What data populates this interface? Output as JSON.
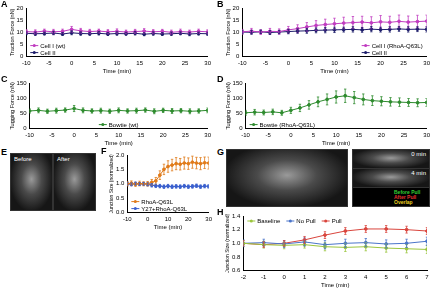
{
  "chart_data": [
    {
      "type": "line",
      "title": "A",
      "x_label": "Time (min)",
      "y_label": "Traction Force (nN)",
      "grid": false,
      "legend": "lower left",
      "x": [
        -10,
        -8,
        -6,
        -4,
        -2,
        0,
        2,
        4,
        6,
        8,
        10,
        12,
        14,
        16,
        18,
        20,
        22,
        24,
        26,
        28,
        30
      ],
      "xlim": [
        -10,
        30
      ],
      "xticks": [
        -10,
        -5,
        0,
        5,
        10,
        15,
        20,
        25,
        30
      ],
      "ylim": [
        0,
        20
      ],
      "yticks": [
        0,
        5,
        10,
        15,
        20
      ],
      "series": [
        {
          "name": "Cell I (wt)",
          "color": "#c03cc0",
          "values": [
            10.3,
            10.1,
            10.5,
            10.2,
            10.4,
            11.2,
            10.6,
            10.3,
            10.5,
            10.2,
            10.4,
            10.1,
            10.3,
            10.5,
            10.2,
            10.4,
            10.0,
            10.3,
            10.1,
            10.4,
            10.2
          ],
          "errors": [
            0.8,
            0.9,
            0.8,
            1.0,
            0.9,
            1.2,
            1.0,
            0.9,
            0.8,
            0.9,
            1.0,
            0.8,
            0.9,
            1.0,
            0.9,
            0.8,
            0.9,
            1.0,
            0.8,
            0.9,
            0.9
          ]
        },
        {
          "name": "Cell II",
          "color": "#1c1c6a",
          "values": [
            9.6,
            9.4,
            9.5,
            9.7,
            9.3,
            9.8,
            9.5,
            9.4,
            9.6,
            9.3,
            9.5,
            9.4,
            9.6,
            9.2,
            9.5,
            9.3,
            9.4,
            9.6,
            9.3,
            9.5,
            9.4
          ],
          "errors": [
            0.6,
            0.7,
            0.6,
            0.7,
            0.6,
            0.8,
            0.7,
            0.6,
            0.7,
            0.6,
            0.7,
            0.6,
            0.7,
            0.6,
            0.7,
            0.6,
            0.7,
            0.6,
            0.7,
            0.6,
            0.7
          ]
        }
      ]
    },
    {
      "type": "line",
      "title": "B",
      "x_label": "Time (min)",
      "y_label": "Traction Force (nN)",
      "grid": false,
      "legend": "lower right",
      "x": [
        -10,
        -8,
        -6,
        -4,
        -2,
        0,
        2,
        4,
        6,
        8,
        10,
        12,
        14,
        16,
        18,
        20,
        22,
        24,
        26,
        28,
        30
      ],
      "xlim": [
        -10,
        30
      ],
      "xticks": [
        -10,
        -5,
        0,
        5,
        10,
        15,
        20,
        25,
        30
      ],
      "ylim": [
        0,
        20
      ],
      "yticks": [
        0,
        5,
        10,
        15,
        20
      ],
      "series": [
        {
          "name": "Cell I (RhoA-Q63L)",
          "color": "#c03cc0",
          "values": [
            10.2,
            10.5,
            10.1,
            10.4,
            10.3,
            11.0,
            11.5,
            12.2,
            12.8,
            13.2,
            13.5,
            13.8,
            14.0,
            14.2,
            13.9,
            14.3,
            14.1,
            14.5,
            14.2,
            14.4,
            14.6
          ],
          "errors": [
            1.0,
            1.1,
            1.0,
            1.2,
            1.1,
            1.4,
            1.6,
            1.8,
            2.0,
            2.2,
            2.3,
            2.4,
            2.5,
            2.4,
            2.5,
            2.6,
            2.5,
            2.6,
            2.5,
            2.6,
            2.5
          ]
        },
        {
          "name": "Cell II",
          "color": "#1c1c6a",
          "values": [
            10.1,
            10.0,
            10.2,
            9.9,
            10.1,
            10.3,
            10.5,
            10.6,
            10.8,
            10.9,
            11.0,
            11.1,
            11.2,
            11.0,
            11.3,
            11.1,
            11.2,
            11.4,
            11.2,
            11.3,
            11.2
          ],
          "errors": [
            0.7,
            0.8,
            0.7,
            0.8,
            0.7,
            0.9,
            0.9,
            1.0,
            1.0,
            1.1,
            1.1,
            1.0,
            1.1,
            1.0,
            1.1,
            1.0,
            1.1,
            1.0,
            1.1,
            1.0,
            1.1
          ]
        }
      ]
    },
    {
      "type": "line",
      "title": "C",
      "x_label": "Time (min)",
      "y_label": "Tugging Force (nN)",
      "grid": false,
      "legend": "lower center",
      "x": [
        -10,
        -8,
        -6,
        -4,
        -2,
        0,
        2,
        4,
        6,
        8,
        10,
        12,
        14,
        16,
        18,
        20,
        22,
        24,
        26,
        28,
        30
      ],
      "xlim": [
        -10,
        30
      ],
      "xticks": [
        -10,
        -5,
        0,
        5,
        10,
        15,
        20,
        25,
        30
      ],
      "ylim": [
        0,
        150
      ],
      "yticks": [
        0,
        50,
        100,
        150
      ],
      "series": [
        {
          "name": "Bowtie (wt)",
          "color": "#2e8b2e",
          "values": [
            58,
            60,
            57,
            59,
            61,
            66,
            60,
            58,
            59,
            57,
            60,
            58,
            59,
            61,
            57,
            60,
            58,
            59,
            57,
            58,
            60
          ],
          "errors": [
            7,
            8,
            7,
            8,
            7,
            10,
            8,
            7,
            8,
            7,
            8,
            7,
            8,
            7,
            8,
            7,
            8,
            7,
            8,
            7,
            8
          ]
        }
      ]
    },
    {
      "type": "line",
      "title": "D",
      "x_label": "Time (min)",
      "y_label": "Tugging Force (nN)",
      "grid": false,
      "legend": "lower left",
      "x": [
        -10,
        -8,
        -6,
        -4,
        -2,
        0,
        2,
        4,
        6,
        8,
        10,
        12,
        14,
        16,
        18,
        20,
        22,
        24,
        26,
        28,
        30
      ],
      "xlim": [
        -10,
        30
      ],
      "xticks": [
        -10,
        -5,
        0,
        5,
        10,
        15,
        20,
        25,
        30
      ],
      "ylim": [
        0,
        150
      ],
      "yticks": [
        0,
        50,
        100,
        150
      ],
      "series": [
        {
          "name": "Bowtie (RhoA-Q63L)",
          "color": "#2e8b2e",
          "values": [
            52,
            54,
            53,
            55,
            52,
            60,
            68,
            78,
            88,
            96,
            104,
            108,
            102,
            96,
            92,
            90,
            88,
            87,
            86,
            85,
            86
          ],
          "errors": [
            8,
            9,
            8,
            9,
            8,
            10,
            12,
            14,
            16,
            18,
            20,
            22,
            20,
            18,
            16,
            15,
            14,
            14,
            13,
            13,
            13
          ]
        }
      ]
    },
    {
      "type": "line",
      "title": "F",
      "x_label": "Time (min)",
      "y_label": "Junction Size (normalized)",
      "grid": false,
      "legend": "lower left",
      "x": [
        -10,
        -8,
        -6,
        -4,
        -2,
        0,
        2,
        4,
        6,
        8,
        10,
        12,
        14,
        16,
        18,
        20,
        22,
        24,
        26,
        28,
        30
      ],
      "xlim": [
        -10,
        30
      ],
      "xticks": [
        -10,
        0,
        10,
        20,
        30
      ],
      "ylim": [
        0,
        2
      ],
      "yticks": [
        {
          "value": 0,
          "label": "0.0"
        },
        0.5,
        {
          "value": 1,
          "label": "1.0"
        },
        1.5,
        {
          "value": 2,
          "label": "2.0"
        }
      ],
      "series": [
        {
          "name": "RhoA-Q63L",
          "color": "#e07b1a",
          "values": [
            1.0,
            1.02,
            0.98,
            1.01,
            1.0,
            1.0,
            1.05,
            1.1,
            1.3,
            1.5,
            1.6,
            1.65,
            1.7,
            1.68,
            1.72,
            1.7,
            1.75,
            1.72,
            1.7,
            1.73,
            1.72
          ],
          "errors": [
            0.08,
            0.08,
            0.07,
            0.08,
            0.07,
            0.08,
            0.1,
            0.12,
            0.15,
            0.18,
            0.2,
            0.2,
            0.21,
            0.2,
            0.21,
            0.2,
            0.21,
            0.2,
            0.21,
            0.2,
            0.21
          ]
        },
        {
          "name": "Y27+RhoA-Q63L",
          "color": "#3a5fcd",
          "values": [
            1.0,
            0.98,
            1.01,
            0.99,
            1.0,
            0.98,
            0.95,
            0.93,
            0.92,
            0.9,
            0.92,
            0.9,
            0.91,
            0.9,
            0.92,
            0.9,
            0.91,
            0.93,
            0.9,
            0.92,
            0.91
          ],
          "errors": [
            0.05,
            0.05,
            0.05,
            0.05,
            0.05,
            0.05,
            0.06,
            0.06,
            0.06,
            0.06,
            0.06,
            0.06,
            0.06,
            0.06,
            0.06,
            0.06,
            0.06,
            0.06,
            0.06,
            0.06,
            0.06
          ]
        }
      ]
    },
    {
      "type": "line",
      "title": "H",
      "x_label": "Time (min)",
      "y_label": "Junction Size (normalized)",
      "grid": false,
      "legend": "upper left",
      "x": [
        -2,
        -1,
        0,
        1,
        2,
        3,
        4,
        5,
        6,
        7
      ],
      "xlim": [
        -2,
        7
      ],
      "xticks": [
        -2,
        -1,
        0,
        1,
        2,
        3,
        4,
        5,
        6,
        7
      ],
      "ylim": [
        0.6,
        1.4
      ],
      "yticks": [
        0.6,
        0.8,
        {
          "value": 1,
          "label": "1.0"
        },
        1.2,
        1.4
      ],
      "series": [
        {
          "name": "Baseline",
          "color": "#9bc53d",
          "values": [
            1.0,
            0.98,
            0.97,
            0.98,
            0.95,
            0.94,
            0.95,
            0.93,
            0.92,
            0.91
          ],
          "errors": [
            0.04,
            0.05,
            0.05,
            0.05,
            0.06,
            0.06,
            0.06,
            0.06,
            0.06,
            0.06
          ]
        },
        {
          "name": "No Pull",
          "color": "#4a74c9",
          "values": [
            1.0,
            1.01,
            0.99,
            1.02,
            0.98,
            1.0,
            1.01,
            0.99,
            1.0,
            1.03
          ],
          "errors": [
            0.05,
            0.05,
            0.05,
            0.06,
            0.06,
            0.06,
            0.06,
            0.06,
            0.06,
            0.06
          ]
        },
        {
          "name": "Pull",
          "color": "#d9453d",
          "values": [
            1.0,
            0.98,
            1.0,
            1.05,
            1.12,
            1.18,
            1.21,
            1.21,
            1.2,
            1.18
          ],
          "errors": [
            0.04,
            0.04,
            0.04,
            0.05,
            0.05,
            0.05,
            0.05,
            0.05,
            0.05,
            0.05
          ]
        }
      ]
    }
  ],
  "images": [
    {
      "title": "E",
      "labels": [
        "Before",
        "After"
      ]
    },
    {
      "title": "G",
      "labels": [
        "0 min",
        "4 min"
      ],
      "overlay_key": [
        {
          "name": "Before Pull",
          "color": "#33cc33"
        },
        {
          "name": "After Pull",
          "color": "#e03030"
        },
        {
          "name": "Overlap",
          "color": "#e8d020"
        }
      ]
    }
  ]
}
